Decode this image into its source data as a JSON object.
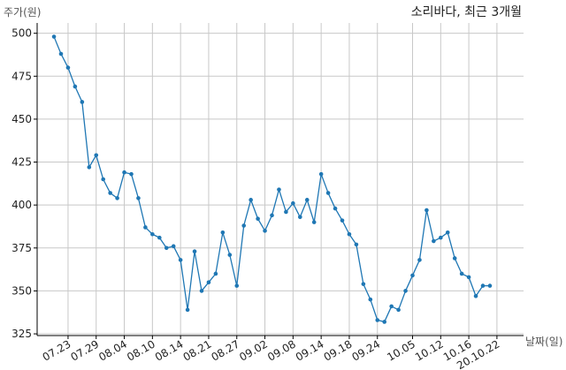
{
  "chart_data": {
    "type": "line",
    "title": "소리바다, 최근 3개월",
    "ylabel": "주가(원)",
    "xlabel": "날짜(일)",
    "ylim": [
      324,
      506
    ],
    "yticks": [
      325,
      350,
      375,
      400,
      425,
      450,
      475,
      500
    ],
    "grid": true,
    "line_color": "#1f77b4",
    "x_tick_labels": [
      "07.23",
      "07.29",
      "08.04",
      "08.10",
      "08.14",
      "08.21",
      "08.27",
      "09.02",
      "09.08",
      "09.14",
      "09.18",
      "09.24",
      "10.05",
      "10.12",
      "10.16",
      "20.10.22"
    ],
    "x_tick_index": [
      2,
      6,
      10,
      14,
      18,
      22,
      26,
      30,
      34,
      38,
      42,
      46,
      51,
      55,
      59,
      63
    ],
    "values": [
      498,
      488,
      480,
      469,
      460,
      422,
      429,
      415,
      407,
      404,
      419,
      418,
      404,
      387,
      383,
      381,
      375,
      376,
      368,
      339,
      373,
      350,
      355,
      360,
      384,
      371,
      353,
      388,
      403,
      392,
      385,
      394,
      409,
      396,
      401,
      393,
      403,
      390,
      418,
      407,
      398,
      391,
      383,
      377,
      354,
      345,
      333,
      332,
      341,
      339,
      350,
      359,
      368,
      397,
      379,
      381,
      384,
      369,
      360,
      358,
      347,
      353,
      353
    ]
  }
}
